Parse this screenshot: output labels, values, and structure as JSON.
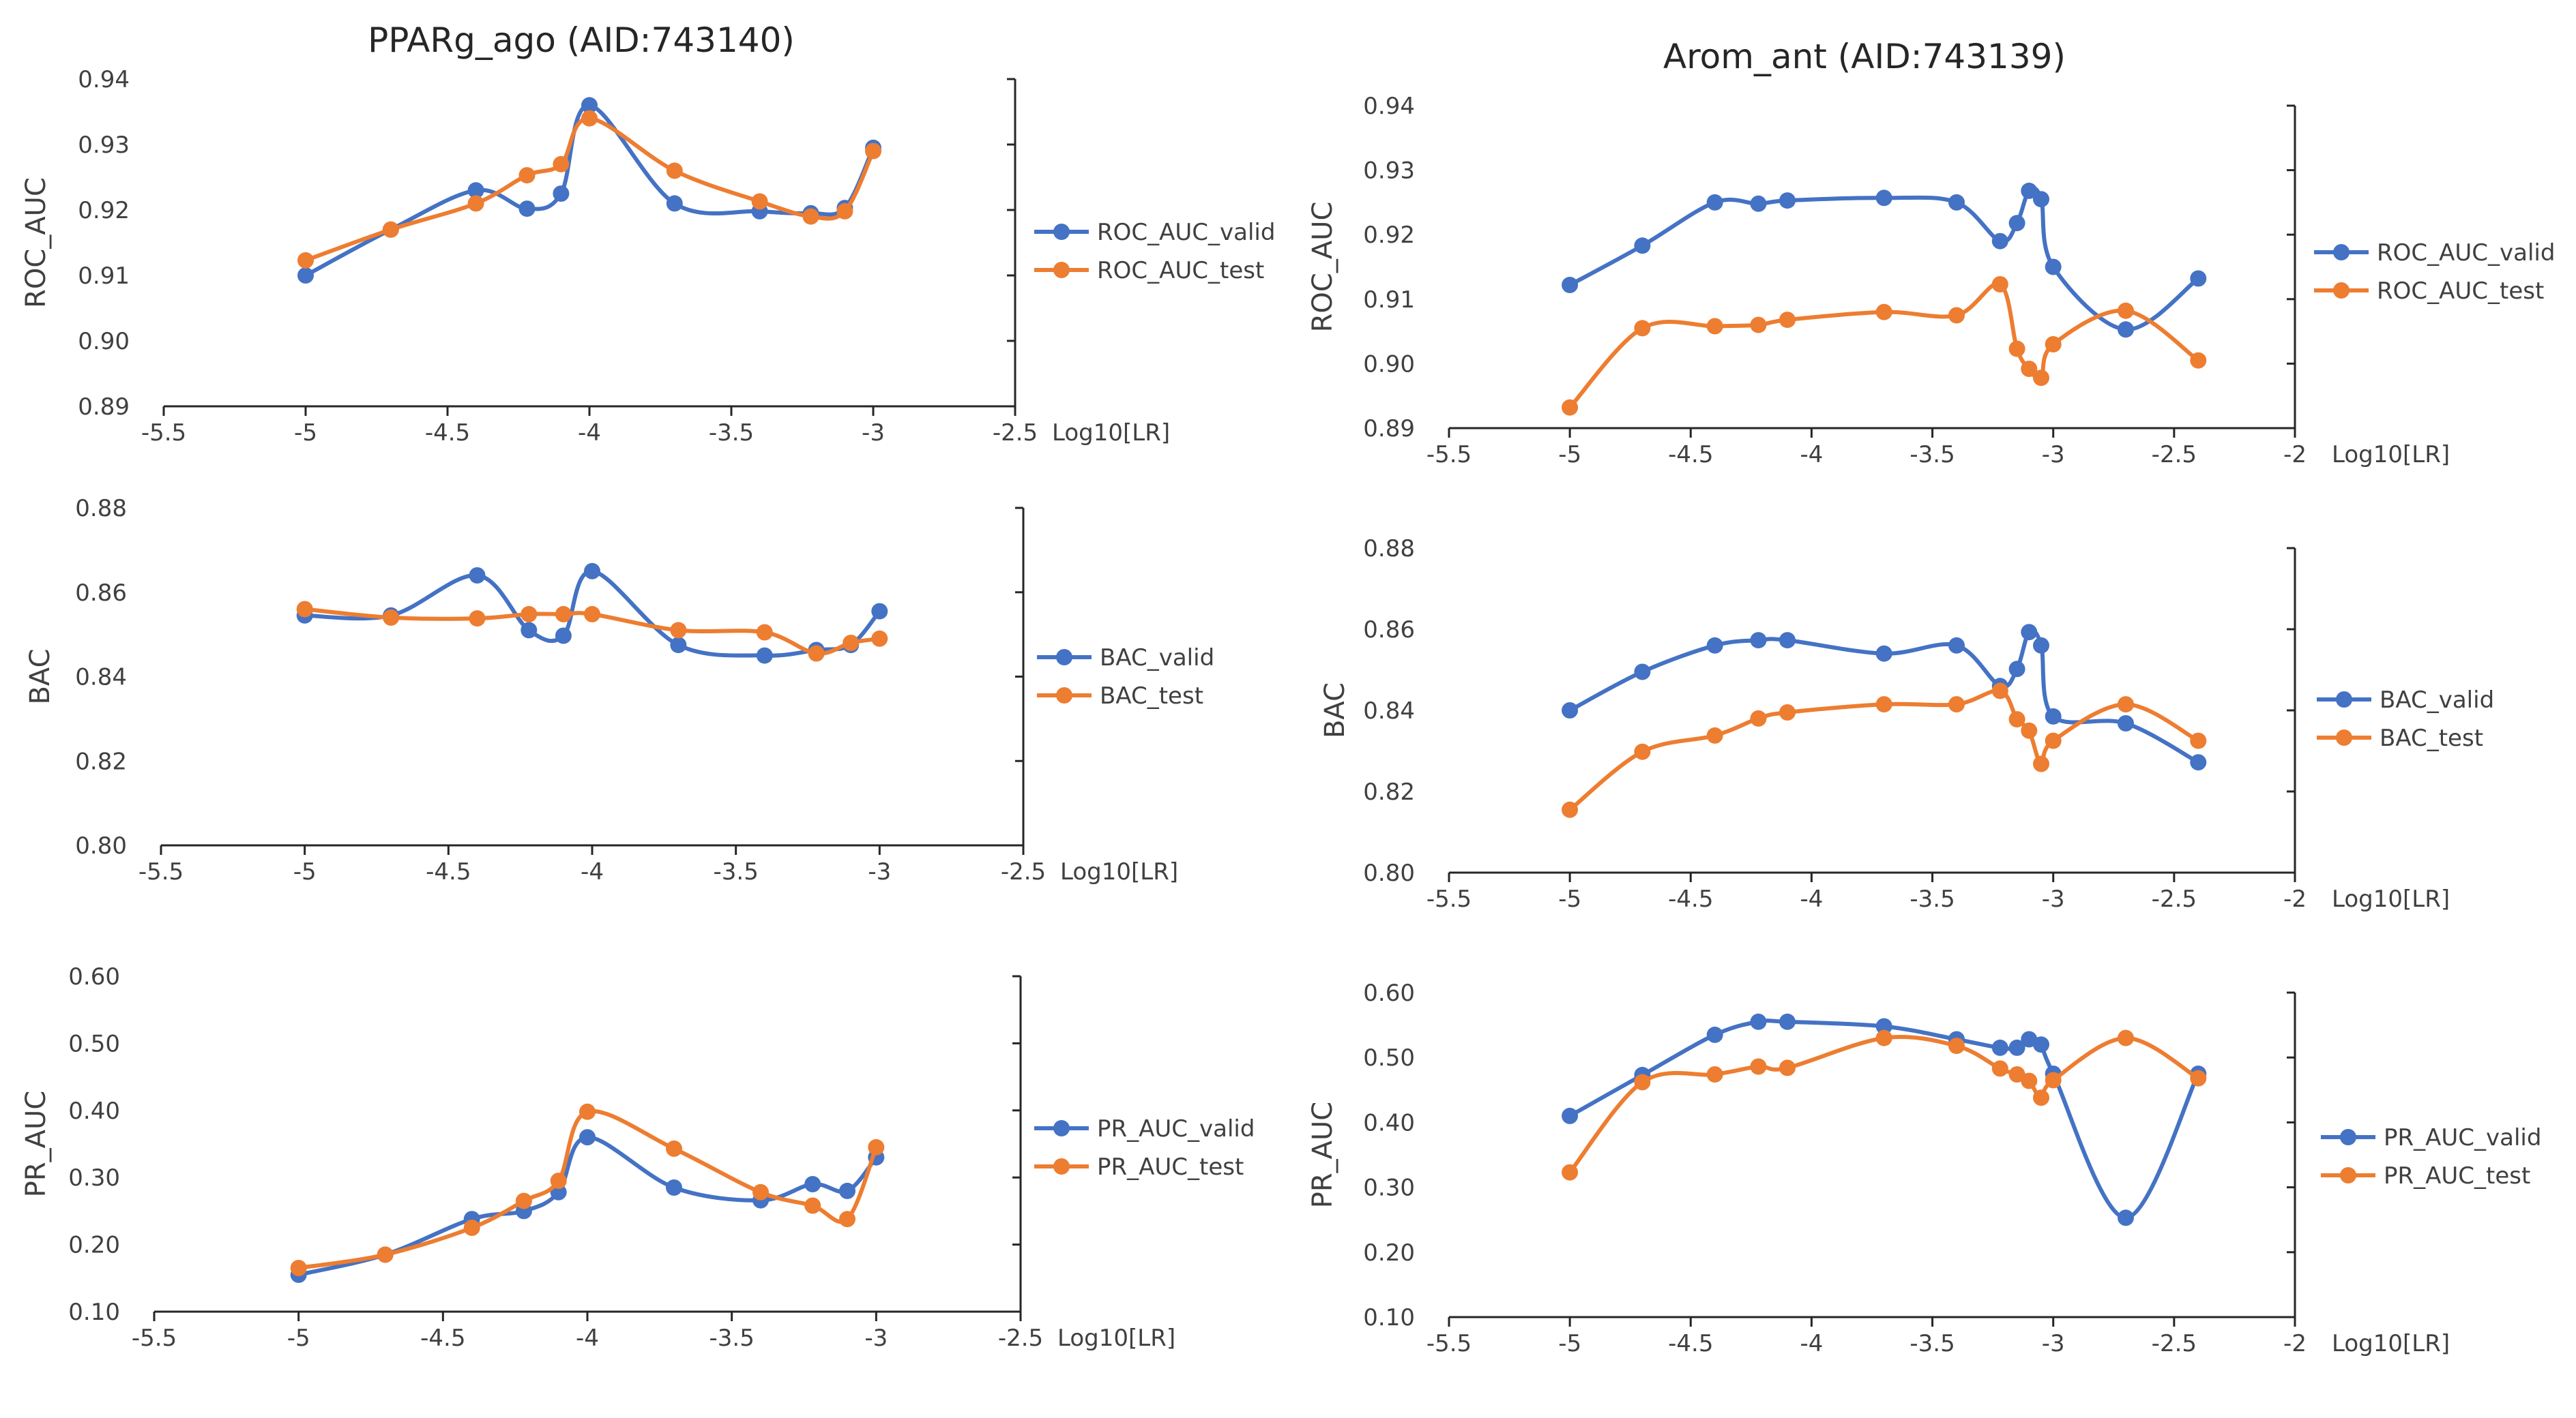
{
  "figure": {
    "left_title": "PPARg_ago (AID:743140)",
    "right_title": "Arom_ant (AID:743139)"
  },
  "colors": {
    "valid": "#4472C4",
    "test": "#ED7D31",
    "axis": "#262626",
    "text": "#404040"
  },
  "chart_data": [
    {
      "type": "line",
      "title": "PPARg_ago (AID:743140)",
      "xlabel": "Log10[LR]",
      "ylabel": "ROC_AUC",
      "xlim": [
        -5.5,
        -2.5
      ],
      "ylim": [
        0.89,
        0.94
      ],
      "xticks": [
        "-5.5",
        "-5",
        "-4.5",
        "-4",
        "-3.5",
        "-3",
        "-2.5"
      ],
      "yticks": [
        "0.89",
        "0.90",
        "0.91",
        "0.92",
        "0.93",
        "0.94"
      ],
      "series": [
        {
          "name": "ROC_AUC_valid",
          "x": [
            -5,
            -4.7,
            -4.4,
            -4.22,
            -4.1,
            -4,
            -3.7,
            -3.4,
            -3.22,
            -3.1,
            -3
          ],
          "y": [
            0.91,
            0.917,
            0.923,
            0.9202,
            0.9225,
            0.936,
            0.921,
            0.9198,
            0.9195,
            0.9203,
            0.9295
          ]
        },
        {
          "name": "ROC_AUC_test",
          "x": [
            -5,
            -4.7,
            -4.4,
            -4.22,
            -4.1,
            -4,
            -3.7,
            -3.4,
            -3.22,
            -3.1,
            -3
          ],
          "y": [
            0.9123,
            0.917,
            0.921,
            0.9253,
            0.927,
            0.934,
            0.926,
            0.9213,
            0.919,
            0.9198,
            0.929
          ]
        }
      ]
    },
    {
      "type": "line",
      "title": "",
      "xlabel": "Log10[LR]",
      "ylabel": "BAC",
      "xlim": [
        -5.5,
        -2.5
      ],
      "ylim": [
        0.8,
        0.88
      ],
      "xticks": [
        "-5.5",
        "-5",
        "-4.5",
        "-4",
        "-3.5",
        "-3",
        "-2.5"
      ],
      "yticks": [
        "0.80",
        "0.82",
        "0.84",
        "0.86",
        "0.88"
      ],
      "series": [
        {
          "name": "BAC_valid",
          "x": [
            -5,
            -4.7,
            -4.4,
            -4.22,
            -4.1,
            -4,
            -3.7,
            -3.4,
            -3.22,
            -3.1,
            -3
          ],
          "y": [
            0.8545,
            0.8545,
            0.864,
            0.851,
            0.8497,
            0.865,
            0.8475,
            0.845,
            0.8463,
            0.8475,
            0.8555
          ]
        },
        {
          "name": "BAC_test",
          "x": [
            -5,
            -4.7,
            -4.4,
            -4.22,
            -4.1,
            -4,
            -3.7,
            -3.4,
            -3.22,
            -3.1,
            -3
          ],
          "y": [
            0.856,
            0.854,
            0.8538,
            0.8548,
            0.8548,
            0.8548,
            0.851,
            0.8505,
            0.8455,
            0.848,
            0.849
          ]
        }
      ]
    },
    {
      "type": "line",
      "title": "",
      "xlabel": "Log10[LR]",
      "ylabel": "PR_AUC",
      "xlim": [
        -5.5,
        -2.5
      ],
      "ylim": [
        0.1,
        0.6
      ],
      "xticks": [
        "-5.5",
        "-5",
        "-4.5",
        "-4",
        "-3.5",
        "-3",
        "-2.5"
      ],
      "yticks": [
        "0.10",
        "0.20",
        "0.30",
        "0.40",
        "0.50",
        "0.60"
      ],
      "series": [
        {
          "name": "PR_AUC_valid",
          "x": [
            -5,
            -4.7,
            -4.4,
            -4.22,
            -4.1,
            -4,
            -3.7,
            -3.4,
            -3.22,
            -3.1,
            -3
          ],
          "y": [
            0.155,
            0.185,
            0.238,
            0.25,
            0.278,
            0.36,
            0.285,
            0.266,
            0.29,
            0.28,
            0.33
          ]
        },
        {
          "name": "PR_AUC_test",
          "x": [
            -5,
            -4.7,
            -4.4,
            -4.22,
            -4.1,
            -4,
            -3.7,
            -3.4,
            -3.22,
            -3.1,
            -3
          ],
          "y": [
            0.165,
            0.185,
            0.225,
            0.265,
            0.295,
            0.398,
            0.343,
            0.278,
            0.258,
            0.238,
            0.345
          ]
        }
      ]
    },
    {
      "type": "line",
      "title": "Arom_ant (AID:743139)",
      "xlabel": "Log10[LR]",
      "ylabel": "ROC_AUC",
      "xlim": [
        -5.5,
        -2
      ],
      "ylim": [
        0.89,
        0.94
      ],
      "xticks": [
        "-5.5",
        "-5",
        "-4.5",
        "-4",
        "-3.5",
        "-3",
        "-2.5",
        "-2"
      ],
      "yticks": [
        "0.89",
        "0.90",
        "0.91",
        "0.92",
        "0.93",
        "0.94"
      ],
      "series": [
        {
          "name": "ROC_AUC_valid",
          "x": [
            -5,
            -4.7,
            -4.4,
            -4.22,
            -4.1,
            -3.7,
            -3.4,
            -3.22,
            -3.15,
            -3.1,
            -3.05,
            -3,
            -2.7,
            -2.4
          ],
          "y": [
            0.9122,
            0.9183,
            0.925,
            0.9248,
            0.9253,
            0.9257,
            0.925,
            0.919,
            0.9218,
            0.9268,
            0.9255,
            0.915,
            0.9053,
            0.9132
          ]
        },
        {
          "name": "ROC_AUC_test",
          "x": [
            -5,
            -4.7,
            -4.4,
            -4.22,
            -4.1,
            -3.7,
            -3.4,
            -3.22,
            -3.15,
            -3.1,
            -3.05,
            -3,
            -2.7,
            -2.4
          ],
          "y": [
            0.8932,
            0.9055,
            0.9058,
            0.906,
            0.9068,
            0.908,
            0.9075,
            0.9123,
            0.9023,
            0.8992,
            0.8978,
            0.903,
            0.9082,
            0.9005
          ]
        }
      ]
    },
    {
      "type": "line",
      "title": "",
      "xlabel": "Log10[LR]",
      "ylabel": "BAC",
      "xlim": [
        -5.5,
        -2
      ],
      "ylim": [
        0.8,
        0.88
      ],
      "xticks": [
        "-5.5",
        "-5",
        "-4.5",
        "-4",
        "-3.5",
        "-3",
        "-2.5",
        "-2"
      ],
      "yticks": [
        "0.80",
        "0.82",
        "0.84",
        "0.86",
        "0.88"
      ],
      "series": [
        {
          "name": "BAC_valid",
          "x": [
            -5,
            -4.7,
            -4.4,
            -4.22,
            -4.1,
            -3.7,
            -3.4,
            -3.22,
            -3.15,
            -3.1,
            -3.05,
            -3,
            -2.7,
            -2.4
          ],
          "y": [
            0.84,
            0.8495,
            0.856,
            0.8573,
            0.8573,
            0.854,
            0.856,
            0.846,
            0.8502,
            0.8593,
            0.856,
            0.8385,
            0.8368,
            0.8272
          ]
        },
        {
          "name": "BAC_test",
          "x": [
            -5,
            -4.7,
            -4.4,
            -4.22,
            -4.1,
            -3.7,
            -3.4,
            -3.22,
            -3.15,
            -3.1,
            -3.05,
            -3,
            -2.7,
            -2.4
          ],
          "y": [
            0.8155,
            0.8298,
            0.8338,
            0.838,
            0.8395,
            0.8415,
            0.8415,
            0.8448,
            0.8378,
            0.835,
            0.8268,
            0.8325,
            0.8415,
            0.8325
          ]
        }
      ]
    },
    {
      "type": "line",
      "title": "",
      "xlabel": "Log10[LR]",
      "ylabel": "PR_AUC",
      "xlim": [
        -5.5,
        -2
      ],
      "ylim": [
        0.1,
        0.6
      ],
      "xticks": [
        "-5.5",
        "-5",
        "-4.5",
        "-4",
        "-3.5",
        "-3",
        "-2.5",
        "-2"
      ],
      "yticks": [
        "0.10",
        "0.20",
        "0.30",
        "0.40",
        "0.50",
        "0.60"
      ],
      "series": [
        {
          "name": "PR_AUC_valid",
          "x": [
            -5,
            -4.7,
            -4.4,
            -4.22,
            -4.1,
            -3.7,
            -3.4,
            -3.22,
            -3.15,
            -3.1,
            -3.05,
            -3,
            -2.7,
            -2.4
          ],
          "y": [
            0.41,
            0.473,
            0.535,
            0.555,
            0.555,
            0.548,
            0.528,
            0.515,
            0.515,
            0.528,
            0.52,
            0.475,
            0.253,
            0.475
          ]
        },
        {
          "name": "PR_AUC_test",
          "x": [
            -5,
            -4.7,
            -4.4,
            -4.22,
            -4.1,
            -3.7,
            -3.4,
            -3.22,
            -3.15,
            -3.1,
            -3.05,
            -3,
            -2.7,
            -2.4
          ],
          "y": [
            0.323,
            0.462,
            0.474,
            0.486,
            0.484,
            0.53,
            0.518,
            0.483,
            0.474,
            0.464,
            0.438,
            0.465,
            0.53,
            0.468
          ]
        }
      ]
    }
  ]
}
